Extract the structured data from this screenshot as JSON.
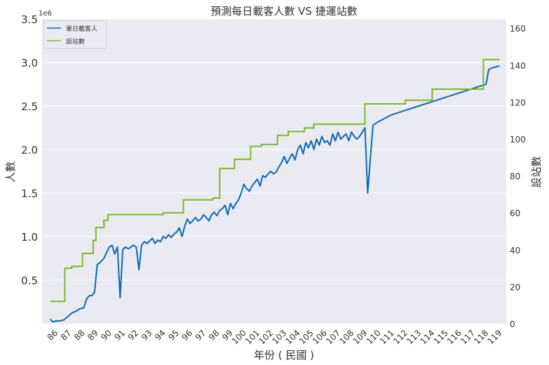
{
  "chart_data": {
    "type": "line",
    "title": "預測每日載客人數 VS 捷運站數",
    "xlabel": "年份 ( 民國 )",
    "ylabel": "人數",
    "y2label": "設站數",
    "y_offset_label": "1e6",
    "xlim": [
      85,
      119.5
    ],
    "ylim": [
      0,
      3.5
    ],
    "y2lim": [
      0,
      165
    ],
    "x_ticks": [
      86,
      87,
      88,
      89,
      90,
      91,
      92,
      93,
      94,
      95,
      96,
      97,
      98,
      99,
      100,
      101,
      102,
      103,
      104,
      105,
      106,
      107,
      108,
      109,
      110,
      111,
      112,
      113,
      114,
      115,
      116,
      117,
      118,
      119
    ],
    "y_ticks": [
      0.5,
      1.0,
      1.5,
      2.0,
      2.5,
      3.0,
      3.5
    ],
    "y_tick_labels": [
      "0.5",
      "1.0",
      "1.5",
      "2.0",
      "2.5",
      "3.0",
      "3.5"
    ],
    "y2_ticks": [
      0,
      20,
      40,
      60,
      80,
      100,
      120,
      140,
      160
    ],
    "grid": true,
    "legend_position": "top-left",
    "series": [
      {
        "name": "單日載客人",
        "axis": "left",
        "color": "#0b6aaf",
        "x": [
          85.6,
          85.8,
          86.0,
          86.3,
          86.6,
          86.9,
          87.2,
          87.5,
          87.8,
          88.1,
          88.3,
          88.5,
          88.7,
          88.9,
          89.1,
          89.3,
          89.6,
          89.8,
          90.0,
          90.2,
          90.4,
          90.6,
          90.8,
          91.0,
          91.2,
          91.4,
          91.6,
          91.8,
          92.0,
          92.2,
          92.4,
          92.6,
          92.8,
          93.0,
          93.2,
          93.4,
          93.6,
          93.8,
          94.0,
          94.2,
          94.4,
          94.6,
          94.8,
          95.0,
          95.2,
          95.4,
          95.6,
          95.8,
          96.0,
          96.2,
          96.4,
          96.6,
          96.8,
          97.0,
          97.2,
          97.4,
          97.6,
          97.8,
          98.0,
          98.2,
          98.4,
          98.6,
          98.8,
          99.0,
          99.2,
          99.4,
          99.6,
          99.8,
          100.0,
          100.2,
          100.4,
          100.6,
          100.8,
          101.0,
          101.2,
          101.4,
          101.6,
          101.8,
          102.0,
          102.2,
          102.4,
          102.6,
          102.8,
          103.0,
          103.2,
          103.4,
          103.6,
          103.8,
          104.0,
          104.2,
          104.4,
          104.6,
          104.8,
          105.0,
          105.2,
          105.4,
          105.6,
          105.8,
          106.0,
          106.2,
          106.4,
          106.6,
          106.8,
          107.0,
          107.2,
          107.4,
          107.6,
          107.8,
          108.0,
          108.2,
          108.4,
          108.6,
          108.8,
          109.0,
          109.2,
          109.4,
          109.6,
          109.8,
          110.0,
          111.0,
          112.0,
          113.0,
          114.0,
          115.0,
          116.0,
          117.0,
          118.0,
          118.2,
          118.5,
          119.0
        ],
        "values": [
          0.05,
          0.02,
          0.03,
          0.03,
          0.04,
          0.08,
          0.12,
          0.14,
          0.17,
          0.18,
          0.28,
          0.32,
          0.32,
          0.36,
          0.68,
          0.7,
          0.75,
          0.82,
          0.88,
          0.9,
          0.8,
          0.88,
          0.3,
          0.85,
          0.88,
          0.86,
          0.88,
          0.9,
          0.88,
          0.62,
          0.9,
          0.94,
          0.92,
          0.95,
          0.98,
          0.92,
          0.96,
          0.94,
          1.0,
          0.98,
          1.02,
          0.99,
          1.03,
          1.05,
          1.1,
          1.0,
          1.12,
          1.2,
          1.15,
          1.18,
          1.22,
          1.18,
          1.2,
          1.25,
          1.22,
          1.18,
          1.25,
          1.28,
          1.24,
          1.3,
          1.32,
          1.36,
          1.25,
          1.38,
          1.32,
          1.38,
          1.42,
          1.5,
          1.6,
          1.55,
          1.52,
          1.58,
          1.62,
          1.66,
          1.58,
          1.7,
          1.68,
          1.72,
          1.75,
          1.72,
          1.74,
          1.8,
          1.85,
          1.92,
          1.84,
          1.9,
          1.95,
          1.88,
          2.0,
          2.05,
          1.95,
          2.08,
          2.02,
          2.1,
          2.0,
          2.12,
          2.05,
          2.15,
          2.08,
          2.1,
          2.05,
          2.18,
          2.1,
          2.2,
          2.12,
          2.15,
          2.18,
          2.1,
          2.2,
          2.15,
          2.12,
          2.15,
          2.2,
          2.25,
          1.5,
          1.9,
          2.28,
          2.3,
          2.32,
          2.4,
          2.45,
          2.5,
          2.55,
          2.6,
          2.65,
          2.7,
          2.75,
          2.92,
          2.94,
          2.96
        ]
      },
      {
        "name": "設站數",
        "axis": "right",
        "color": "#7cb926",
        "steps": [
          [
            85.6,
            12
          ],
          [
            86.7,
            12
          ],
          [
            86.7,
            30
          ],
          [
            87.2,
            30
          ],
          [
            87.2,
            31
          ],
          [
            88.0,
            31
          ],
          [
            88.0,
            38
          ],
          [
            88.8,
            38
          ],
          [
            88.8,
            45
          ],
          [
            89.0,
            45
          ],
          [
            89.0,
            52
          ],
          [
            89.6,
            52
          ],
          [
            89.6,
            56
          ],
          [
            89.9,
            56
          ],
          [
            89.9,
            59
          ],
          [
            94.0,
            59
          ],
          [
            94.0,
            60
          ],
          [
            95.5,
            60
          ],
          [
            95.5,
            67
          ],
          [
            97.7,
            67
          ],
          [
            97.7,
            68
          ],
          [
            98.2,
            68
          ],
          [
            98.2,
            84
          ],
          [
            99.3,
            84
          ],
          [
            99.3,
            89
          ],
          [
            100.5,
            89
          ],
          [
            100.5,
            96
          ],
          [
            101.3,
            96
          ],
          [
            101.3,
            97
          ],
          [
            102.5,
            97
          ],
          [
            102.5,
            102
          ],
          [
            103.3,
            102
          ],
          [
            103.3,
            104
          ],
          [
            104.5,
            104
          ],
          [
            104.5,
            106
          ],
          [
            105.2,
            106
          ],
          [
            105.2,
            108
          ],
          [
            109.0,
            108
          ],
          [
            109.0,
            119
          ],
          [
            112.0,
            119
          ],
          [
            112.0,
            121
          ],
          [
            114.0,
            121
          ],
          [
            114.0,
            127
          ],
          [
            117.8,
            127
          ],
          [
            117.8,
            143
          ],
          [
            119.0,
            143
          ]
        ]
      }
    ]
  }
}
